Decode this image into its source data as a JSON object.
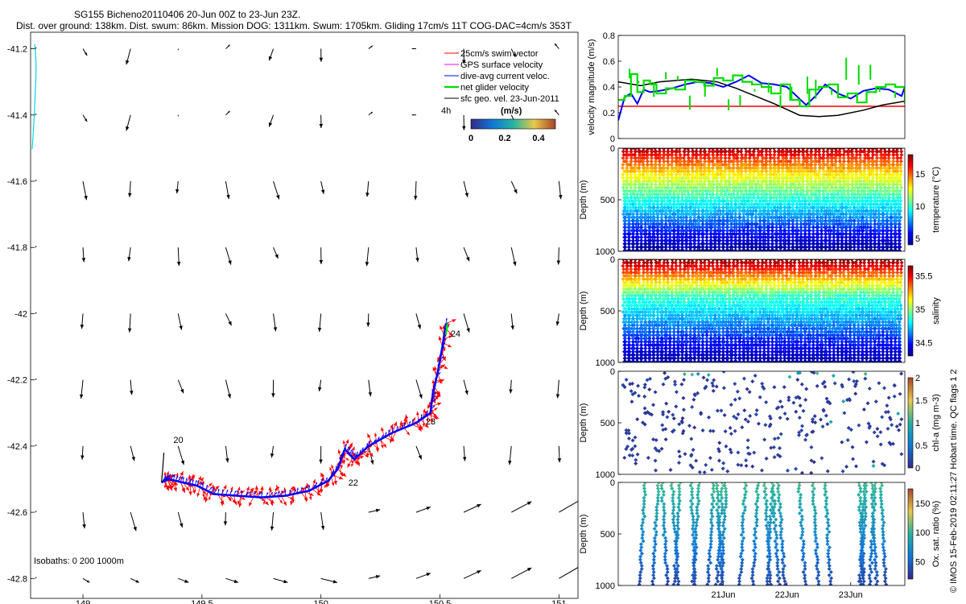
{
  "header": {
    "title_line1": "SG155 Bicheno20110406 20-Jun 00Z to 23-Jun 23Z.",
    "title_line2": "Dist. over ground: 138km. Dist. swum: 86km. Mission DOG: 1311km. Swum: 1705km. Gliding 17cm/s 11T COG-DAC=4cm/s 353T"
  },
  "side_caption": "© IMOS 15-Feb-2019 02:11:27 Hobart time. QC flags 1  2",
  "colors": {
    "swim": "#ff0000",
    "gps": "#ff00ff",
    "dac": "#0000ff",
    "net": "#00dd00",
    "geo": "#000000",
    "coast": "#00d8e8"
  },
  "chart_data": [
    {
      "type": "quiver-map",
      "id": "map",
      "xlim": [
        148.78,
        151.08
      ],
      "ylim": [
        -42.86,
        -41.15
      ],
      "xticks": [
        149,
        149.5,
        150,
        150.5,
        151
      ],
      "xtick_labels": [
        "149",
        "149.5",
        "150",
        "150.5",
        "151"
      ],
      "yticks": [
        -41.2,
        -41.4,
        -41.6,
        -41.8,
        -42,
        -42.2,
        -42.4,
        -42.6,
        -42.8
      ],
      "ytick_labels": [
        "-41.2",
        "-41.4",
        "-41.6",
        "-41.8",
        "-42",
        "-42.2",
        "-42.4",
        "-42.6",
        "-42.8"
      ],
      "legend": {
        "entries": [
          "25cm/s swim vector",
          "GPS surface velocity",
          "dive-avg current veloc.",
          "net glider velocity",
          "sfc geo. vel. 23-Jun-2011"
        ],
        "time_label": "4h",
        "colorbar_title": "(m/s)",
        "colorbar_ticks": [
          "0",
          "0.2",
          "0.4"
        ],
        "colorbar_range": [
          0,
          0.5
        ]
      },
      "isobath_label": "Isobaths: 0   200  1000m",
      "track": [
        [
          149.33,
          -42.51
        ],
        [
          149.36,
          -42.5
        ],
        [
          149.42,
          -42.51
        ],
        [
          149.48,
          -42.52
        ],
        [
          149.55,
          -42.545
        ],
        [
          149.65,
          -42.55
        ],
        [
          149.75,
          -42.555
        ],
        [
          149.85,
          -42.55
        ],
        [
          149.95,
          -42.535
        ],
        [
          150.03,
          -42.505
        ],
        [
          150.07,
          -42.47
        ],
        [
          150.1,
          -42.41
        ],
        [
          150.14,
          -42.44
        ],
        [
          150.2,
          -42.4
        ],
        [
          150.3,
          -42.36
        ],
        [
          150.4,
          -42.33
        ],
        [
          150.46,
          -42.3
        ],
        [
          150.47,
          -42.24
        ],
        [
          150.49,
          -42.18
        ],
        [
          150.51,
          -42.1
        ],
        [
          150.525,
          -42.03
        ]
      ],
      "start_hook": [
        [
          149.33,
          -42.51
        ],
        [
          149.335,
          -42.47
        ],
        [
          149.34,
          -42.42
        ]
      ],
      "day_labels": [
        {
          "text": "20",
          "lon": 149.38,
          "lat": -42.39
        },
        {
          "text": "22",
          "lon": 150.115,
          "lat": -42.52
        },
        {
          "text": "23",
          "lon": 150.44,
          "lat": -42.335
        },
        {
          "text": "24",
          "lon": 150.545,
          "lat": -42.07
        }
      ],
      "geo_vectors": {
        "lons": [
          148.8,
          149,
          149.2,
          149.4,
          149.6,
          149.8,
          150,
          150.2,
          150.4,
          150.6,
          150.8,
          151
        ],
        "lats": [
          -41.2,
          -41.4,
          -41.6,
          -41.8,
          -42,
          -42.2,
          -42.4,
          -42.6,
          -42.8
        ],
        "speed_scale_deg_per_ms": 0.45
      }
    },
    {
      "type": "line",
      "id": "velocity",
      "x_range_days": [
        19.35,
        23.85
      ],
      "ylim": [
        0,
        0.8
      ],
      "yticks": [
        0,
        0.2,
        0.4,
        0.6,
        0.8
      ],
      "ylabel": "velocity magnitude (m/s)",
      "series": [
        {
          "name": "swim speed",
          "color": "#ff0000",
          "x": [
            19.35,
            23.85
          ],
          "y": [
            0.25,
            0.25
          ]
        },
        {
          "name": "geostrophic",
          "color": "#000000",
          "x": [
            19.35,
            19.7,
            20.0,
            20.5,
            20.9,
            21.2,
            21.5,
            21.8,
            22.2,
            22.5,
            22.8,
            23.2,
            23.5,
            23.85
          ],
          "y": [
            0.44,
            0.41,
            0.44,
            0.46,
            0.44,
            0.39,
            0.33,
            0.27,
            0.18,
            0.17,
            0.18,
            0.22,
            0.26,
            0.29
          ]
        },
        {
          "name": "dive-avg current",
          "color": "#0000ff",
          "x": [
            19.35,
            19.45,
            19.55,
            19.65,
            19.75,
            19.85,
            20.0,
            20.2,
            20.4,
            20.6,
            20.8,
            21.0,
            21.2,
            21.4,
            21.6,
            21.8,
            22.0,
            22.15,
            22.3,
            22.45,
            22.6,
            22.8,
            23.0,
            23.2,
            23.4,
            23.6,
            23.8,
            23.85
          ],
          "y": [
            0.14,
            0.32,
            0.35,
            0.27,
            0.38,
            0.36,
            0.37,
            0.39,
            0.42,
            0.44,
            0.43,
            0.4,
            0.44,
            0.49,
            0.43,
            0.42,
            0.4,
            0.33,
            0.26,
            0.33,
            0.42,
            0.35,
            0.31,
            0.37,
            0.39,
            0.38,
            0.33,
            0.4
          ]
        },
        {
          "name": "net glider velocity",
          "color": "#00dd00",
          "style": "step",
          "x": [
            19.35,
            19.45,
            19.55,
            19.65,
            19.75,
            19.85,
            19.95,
            20.1,
            20.25,
            20.4,
            20.55,
            20.7,
            20.85,
            21.0,
            21.15,
            21.3,
            21.45,
            21.6,
            21.75,
            21.9,
            22.05,
            22.2,
            22.35,
            22.5,
            22.65,
            22.8,
            22.95,
            23.1,
            23.25,
            23.4,
            23.55,
            23.7,
            23.85
          ],
          "y": [
            0.3,
            0.33,
            0.5,
            0.36,
            0.45,
            0.42,
            0.35,
            0.39,
            0.38,
            0.45,
            0.44,
            0.41,
            0.47,
            0.45,
            0.49,
            0.44,
            0.42,
            0.4,
            0.35,
            0.42,
            0.3,
            0.25,
            0.38,
            0.4,
            0.42,
            0.32,
            0.35,
            0.28,
            0.36,
            0.4,
            0.42,
            0.4,
            0.27
          ]
        }
      ]
    },
    {
      "type": "scatter",
      "id": "temperature",
      "ylabel": "Depth (m)",
      "ylim": [
        1000,
        0
      ],
      "yticks": [
        0,
        500,
        1000
      ],
      "cbar_label": "temperature (°C)",
      "cbar_ticks": [
        5,
        10,
        15
      ],
      "cbar_range": [
        4,
        18
      ],
      "value_profile": "temperature",
      "dives_approx": 68
    },
    {
      "type": "scatter",
      "id": "salinity",
      "ylabel": "Depth (m)",
      "ylim": [
        1000,
        0
      ],
      "yticks": [
        0,
        500,
        1000
      ],
      "cbar_label": "salinity",
      "cbar_ticks": [
        34.5,
        35,
        35.5
      ],
      "cbar_range": [
        34.3,
        35.65
      ],
      "value_profile": "salinity",
      "dives_approx": 68
    },
    {
      "type": "scatter",
      "id": "chla",
      "ylabel": "Depth (m)",
      "ylim": [
        1000,
        0
      ],
      "yticks": [
        0,
        500,
        1000
      ],
      "cbar_label": "chl-a (mg m-3)",
      "cbar_ticks": [
        0,
        0.5,
        1,
        1.5,
        2
      ],
      "cbar_range": [
        0,
        2
      ],
      "value_profile": "chla",
      "points_approx": 340
    },
    {
      "type": "scatter",
      "id": "oxygen",
      "ylabel": "Depth (m)",
      "ylim": [
        1000,
        0
      ],
      "yticks": [
        0,
        500,
        1000
      ],
      "cbar_label": "Ox. sat. ratio (%)",
      "cbar_ticks": [
        50,
        100,
        150
      ],
      "cbar_range": [
        20,
        175
      ],
      "value_profile": "oxygen",
      "dives_approx": 26
    },
    {
      "type": "axis",
      "id": "time-axis",
      "xticks_days": [
        21,
        22,
        23
      ],
      "xtick_labels": [
        "21Jun",
        "22Jun",
        "23Jun"
      ]
    }
  ]
}
